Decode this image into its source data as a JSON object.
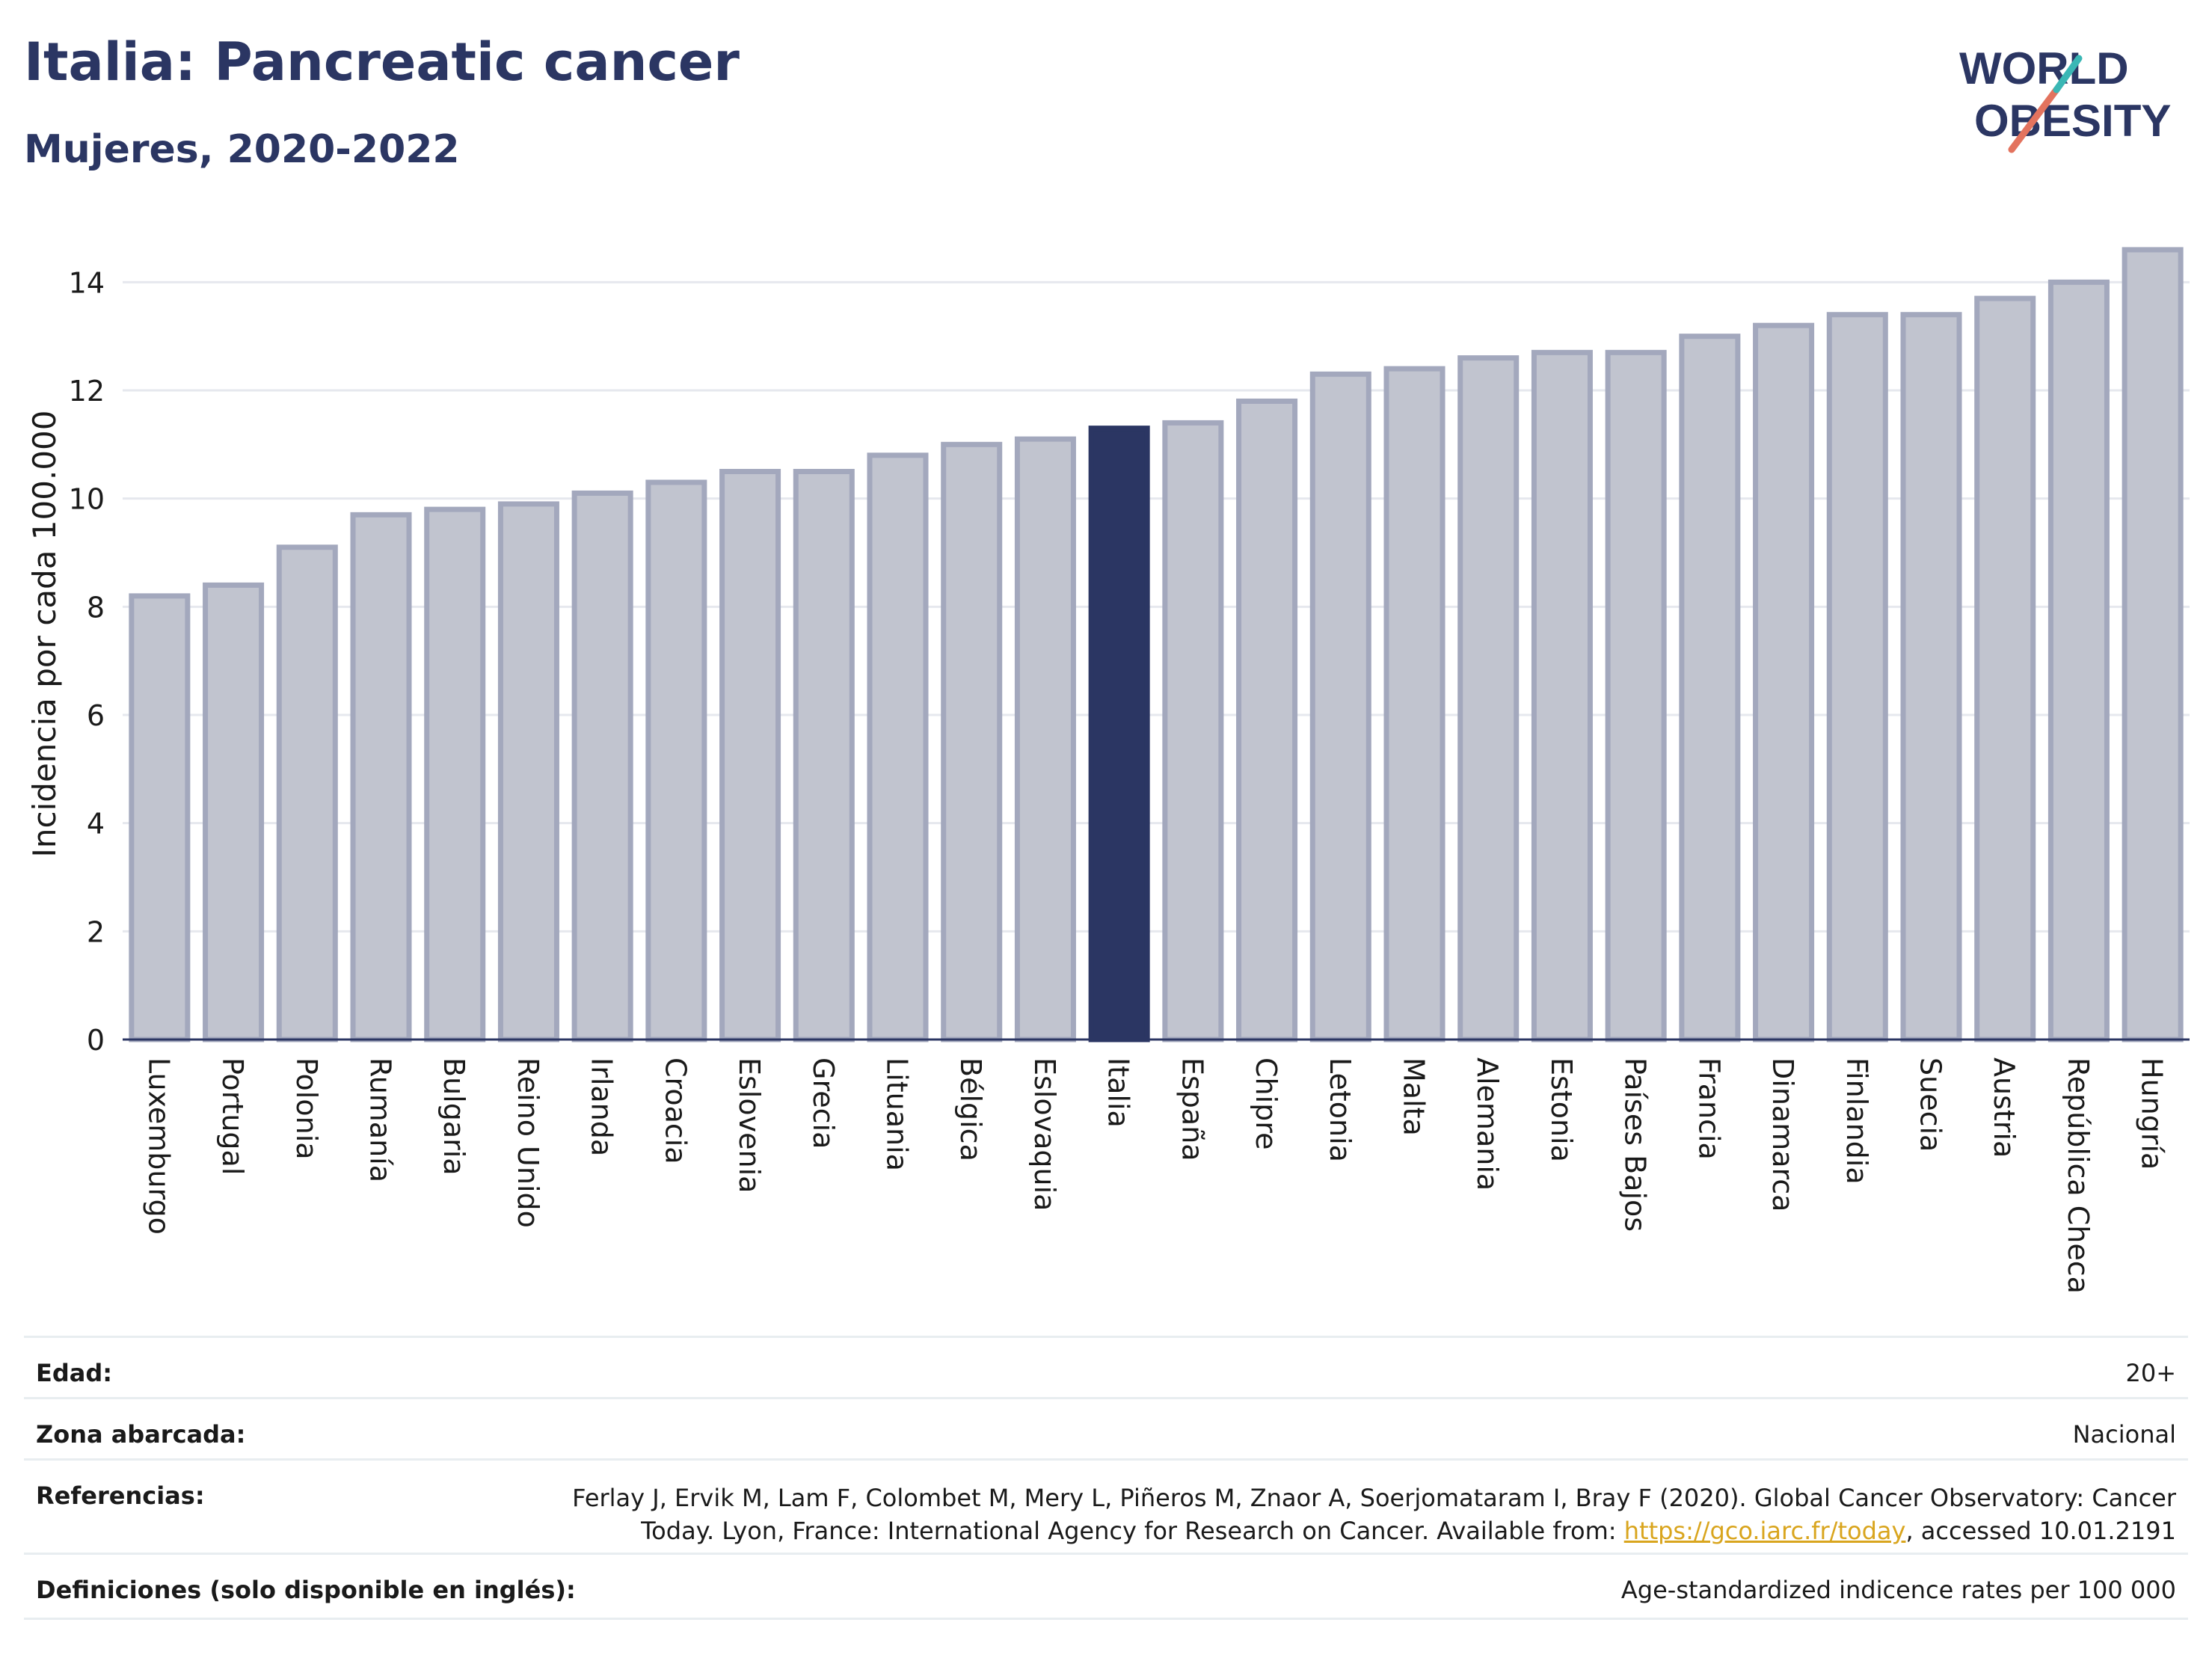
{
  "header": {
    "title": "Italia: Pancreatic cancer",
    "subtitle": "Mujeres, 2020-2022",
    "logo_line1": "WORLD",
    "logo_line2": "OBESITY"
  },
  "colors": {
    "bar": "#c1c4cf",
    "bar_stroke": "#a3a8bd",
    "highlight": "#2b3663",
    "grid": "#e6e8ee",
    "text": "#1a1a1a"
  },
  "chart_data": {
    "type": "bar",
    "ylabel": "Incidencia por cada 100.000",
    "ylim": [
      0,
      15
    ],
    "yticks": [
      0,
      2,
      4,
      6,
      8,
      10,
      12,
      14
    ],
    "grid": true,
    "highlight": "Italia",
    "categories": [
      "Luxemburgo",
      "Portugal",
      "Polonia",
      "Rumanía",
      "Bulgaria",
      "Reino Unido",
      "Irlanda",
      "Croacia",
      "Eslovenia",
      "Grecia",
      "Lituania",
      "Bélgica",
      "Eslovaquia",
      "Italia",
      "España",
      "Chipre",
      "Letonia",
      "Malta",
      "Alemania",
      "Estonia",
      "Países Bajos",
      "Francia",
      "Dinamarca",
      "Finlandia",
      "Suecia",
      "Austria",
      "República Checa",
      "Hungría"
    ],
    "values": [
      8.2,
      8.4,
      9.1,
      9.7,
      9.8,
      9.9,
      10.1,
      10.3,
      10.5,
      10.5,
      10.8,
      11.0,
      11.1,
      11.3,
      11.4,
      11.8,
      12.3,
      12.4,
      12.6,
      12.7,
      12.7,
      13.0,
      13.2,
      13.4,
      13.4,
      13.7,
      14.0,
      14.6
    ]
  },
  "meta": {
    "edad_label": "Edad:",
    "edad_value": "20+",
    "zona_label": "Zona abarcada:",
    "zona_value": "Nacional",
    "ref_label": "Referencias:",
    "ref_line1": "Ferlay J, Ervik M, Lam F, Colombet M, Mery L, Piñeros M, Znaor A, Soerjomataram I, Bray F (2020). Global Cancer Observatory: Cancer",
    "ref_line2_pre": "Today. Lyon, France: International Agency for Research on Cancer. Available from: ",
    "ref_link": "https://gco.iarc.fr/today",
    "ref_line2_post": ", accessed 10.01.2191",
    "def_label": "Definiciones (solo disponible en inglés):",
    "def_value": "Age-standardized indicence rates per 100 000"
  }
}
